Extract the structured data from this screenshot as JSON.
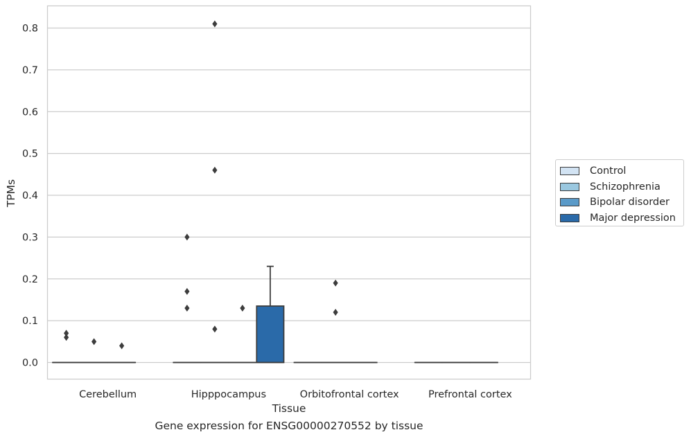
{
  "chart_data": {
    "type": "box",
    "caption": "Gene expression for ENSG00000270552 by tissue",
    "xlabel": "Tissue",
    "ylabel": "TPMs",
    "ylim": [
      -0.04,
      0.85
    ],
    "yticks": [
      0.0,
      0.1,
      0.2,
      0.3,
      0.4,
      0.5,
      0.6,
      0.7,
      0.8
    ],
    "ytick_labels": [
      "0.0",
      "0.1",
      "0.2",
      "0.3",
      "0.4",
      "0.5",
      "0.6",
      "0.7",
      "0.8"
    ],
    "grid": "horizontal",
    "legend_position": "right, outside plot",
    "categories": [
      "Cerebellum",
      "Hipppocampus",
      "Orbitofrontal cortex",
      "Prefrontal cortex"
    ],
    "series": [
      {
        "name": "Control",
        "color": "#d2e3f3",
        "boxes": [
          {
            "q1": 0,
            "median": 0,
            "q3": 0,
            "whisker_low": 0,
            "whisker_high": 0,
            "outliers": [
              0.06,
              0.07
            ]
          },
          {
            "q1": 0,
            "median": 0,
            "q3": 0,
            "whisker_low": 0,
            "whisker_high": 0,
            "outliers": [
              0.13,
              0.17,
              0.3
            ]
          },
          {
            "q1": 0,
            "median": 0,
            "q3": 0,
            "whisker_low": 0,
            "whisker_high": 0,
            "outliers": []
          },
          {
            "q1": 0,
            "median": 0,
            "q3": 0,
            "whisker_low": 0,
            "whisker_high": 0,
            "outliers": []
          }
        ]
      },
      {
        "name": "Schizophrenia",
        "color": "#9ac8e0",
        "boxes": [
          {
            "q1": 0,
            "median": 0,
            "q3": 0,
            "whisker_low": 0,
            "whisker_high": 0,
            "outliers": [
              0.05
            ]
          },
          {
            "q1": 0,
            "median": 0,
            "q3": 0,
            "whisker_low": 0,
            "whisker_high": 0,
            "outliers": [
              0.08,
              0.46,
              0.81
            ]
          },
          {
            "q1": 0,
            "median": 0,
            "q3": 0,
            "whisker_low": 0,
            "whisker_high": 0,
            "outliers": [
              0.12,
              0.19
            ]
          },
          {
            "q1": 0,
            "median": 0,
            "q3": 0,
            "whisker_low": 0,
            "whisker_high": 0,
            "outliers": []
          }
        ]
      },
      {
        "name": "Bipolar disorder",
        "color": "#5a9ac8",
        "boxes": [
          {
            "q1": 0,
            "median": 0,
            "q3": 0,
            "whisker_low": 0,
            "whisker_high": 0,
            "outliers": [
              0.04
            ]
          },
          {
            "q1": 0,
            "median": 0,
            "q3": 0,
            "whisker_low": 0,
            "whisker_high": 0,
            "outliers": [
              0.13
            ]
          },
          {
            "q1": 0,
            "median": 0,
            "q3": 0,
            "whisker_low": 0,
            "whisker_high": 0,
            "outliers": []
          },
          {
            "q1": 0,
            "median": 0,
            "q3": 0,
            "whisker_low": 0,
            "whisker_high": 0,
            "outliers": []
          }
        ]
      },
      {
        "name": "Major depression",
        "color": "#2a6aa9",
        "boxes": [
          null,
          {
            "q1": 0,
            "median": 0,
            "q3": 0.135,
            "whisker_low": 0,
            "whisker_high": 0.23,
            "outliers": []
          },
          null,
          null
        ]
      }
    ]
  }
}
